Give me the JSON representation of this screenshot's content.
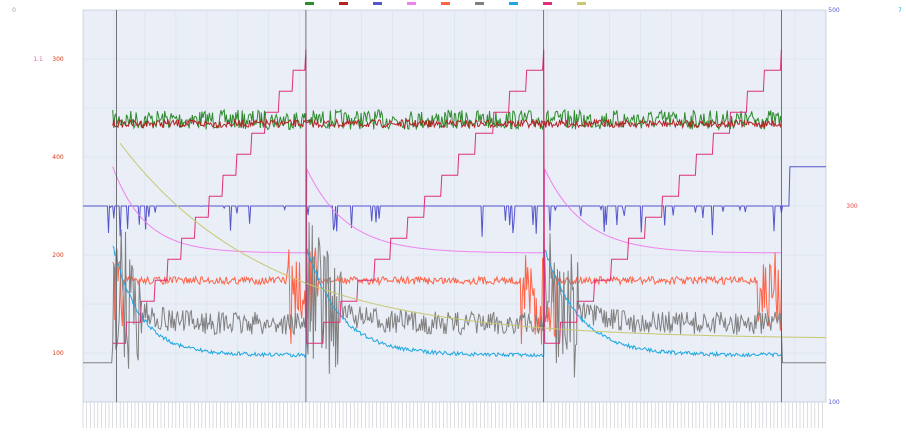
{
  "chart_data": {
    "type": "line",
    "title": "",
    "grid": true,
    "legend_position": "top-center",
    "legend": [
      "",
      "",
      "",
      "",
      "",
      "",
      "",
      "",
      ""
    ],
    "x_tick_count": 200,
    "y_axes": [
      {
        "id": "a1",
        "side": "left",
        "color": "#9aa0aa",
        "ticks": [
          "0",
          "",
          "",
          "",
          "",
          "",
          "",
          "",
          ""
        ]
      },
      {
        "id": "a2",
        "side": "left",
        "color": "#e05fa8",
        "ticks": [
          "",
          "1.1",
          "",
          "",
          "",
          "",
          "",
          "",
          ""
        ]
      },
      {
        "id": "a3",
        "side": "left",
        "color": "#d43a1a",
        "ticks": [
          "",
          "300",
          "",
          "400",
          "",
          "200",
          "",
          "100",
          ""
        ]
      },
      {
        "id": "a4",
        "side": "left",
        "color": "#c8a400",
        "ticks": [
          "",
          "",
          "",
          "",
          "",
          "",
          "",
          "",
          ""
        ]
      },
      {
        "id": "a5",
        "side": "right",
        "color": "#5a5ad0",
        "ticks": [
          "500",
          "",
          "",
          "",
          "",
          "",
          "",
          "",
          "100"
        ]
      },
      {
        "id": "a6",
        "side": "right",
        "color": "#e8474c",
        "ticks": [
          "",
          "",
          "",
          "",
          "300",
          "",
          "",
          "",
          ""
        ]
      },
      {
        "id": "a7",
        "side": "right",
        "color": "#3a9a3a",
        "ticks": [
          "",
          "",
          "",
          "",
          "",
          "",
          "",
          "",
          ""
        ]
      },
      {
        "id": "a8",
        "side": "right",
        "color": "#e0307a",
        "ticks": [
          "",
          "",
          "",
          "",
          "",
          "",
          "",
          "",
          ""
        ]
      },
      {
        "id": "a9",
        "side": "right",
        "color": "#22aadd",
        "ticks": [
          "7",
          "",
          "",
          "",
          "",
          "",
          "",
          "",
          ""
        ]
      }
    ],
    "series": [
      {
        "name": "",
        "color": "#2e8b2e",
        "level": 0.28
      },
      {
        "name": "",
        "color": "#b22222",
        "level": 0.29
      },
      {
        "name": "",
        "color": "#5555cc",
        "level": 0.5
      },
      {
        "name": "",
        "color": "#ee82ee",
        "level": 0.62
      },
      {
        "name": "",
        "color": "#ff6347",
        "level": 0.68
      },
      {
        "name": "",
        "color": "#808080",
        "level": 0.8
      },
      {
        "name": "",
        "color": "#1ea7e0",
        "level": 0.92
      },
      {
        "name": "",
        "color": "#e0307a",
        "level": 0.15
      },
      {
        "name": "",
        "color": "#c8c870",
        "level": 0.7
      }
    ]
  }
}
